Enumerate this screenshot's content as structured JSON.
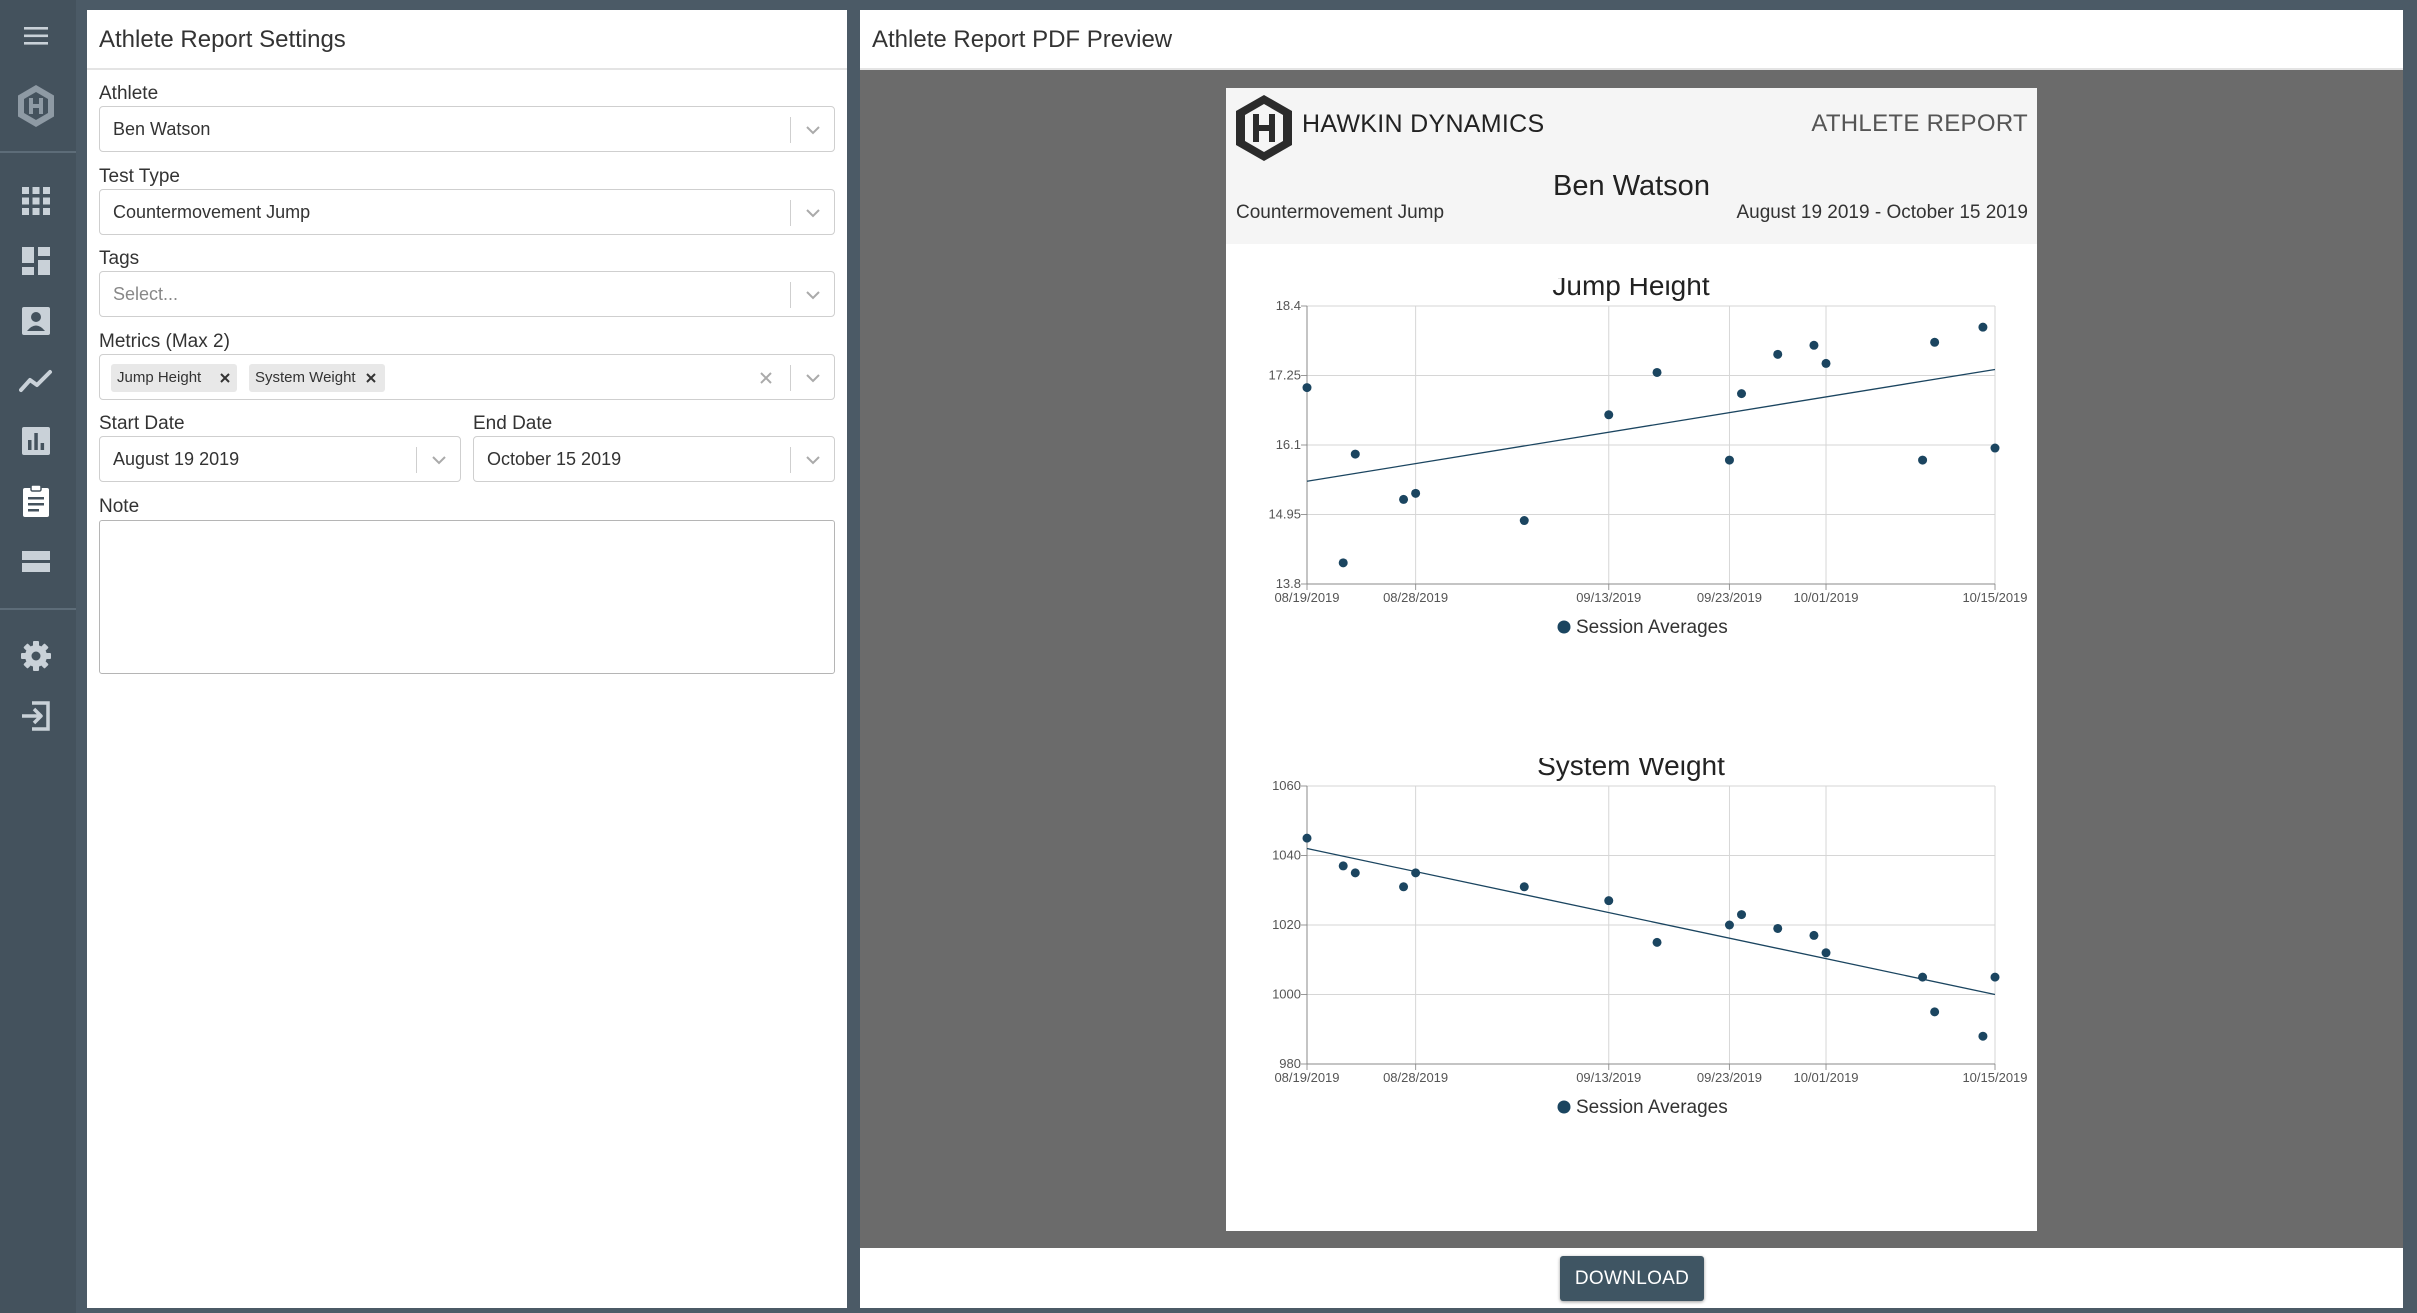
{
  "sidebar": {
    "icons": [
      "menu-icon",
      "hawkin-logo-icon",
      "apps-grid-icon",
      "dashboard-icon",
      "athlete-profile-icon",
      "trends-line-icon",
      "bar-chart-icon",
      "report-clipboard-icon",
      "list-view-icon",
      "settings-gear-icon",
      "logout-icon"
    ]
  },
  "settings": {
    "title": "Athlete Report Settings",
    "athlete": {
      "label": "Athlete",
      "value": "Ben Watson"
    },
    "test_type": {
      "label": "Test Type",
      "value": "Countermovement Jump"
    },
    "tags": {
      "label": "Tags",
      "placeholder": "Select..."
    },
    "metrics": {
      "label": "Metrics (Max 2)",
      "selected": [
        "Jump Height",
        "System Weight"
      ]
    },
    "start_date": {
      "label": "Start Date",
      "value": "August 19 2019"
    },
    "end_date": {
      "label": "End Date",
      "value": "October 15 2019"
    },
    "note": {
      "label": "Note",
      "value": ""
    }
  },
  "preview": {
    "title": "Athlete Report PDF Preview",
    "report": {
      "brand": "HAWKIN DYNAMICS",
      "report_label": "ATHLETE REPORT",
      "athlete": "Ben Watson",
      "test_type": "Countermovement Jump",
      "date_range": "August 19 2019 - October 15 2019"
    },
    "download_label": "DOWNLOAD"
  },
  "colors": {
    "sidebar": "#44525d",
    "accent": "#1b4560",
    "button": "#3f5563",
    "preview_bg": "#6b6b6b"
  },
  "chart_data": [
    {
      "type": "scatter",
      "title": "Jump Height",
      "legend": "Session Averages",
      "legend_position": "bottom",
      "grid": true,
      "trendline": true,
      "x_ticks": [
        "08/19/2019",
        "08/28/2019",
        "09/13/2019",
        "09/23/2019",
        "10/01/2019",
        "10/15/2019"
      ],
      "xlim": [
        "2019-08-19",
        "2019-10-15"
      ],
      "y_ticks": [
        "18.4",
        "17.25",
        "16.1",
        "14.95",
        "13.8"
      ],
      "ylim": [
        13.8,
        18.4
      ],
      "x": [
        "2019-08-19",
        "2019-08-22",
        "2019-08-23",
        "2019-08-27",
        "2019-08-28",
        "2019-09-06",
        "2019-09-13",
        "2019-09-17",
        "2019-09-23",
        "2019-09-24",
        "2019-09-27",
        "2019-09-30",
        "2019-10-01",
        "2019-10-09",
        "2019-10-10",
        "2019-10-14",
        "2019-10-15"
      ],
      "y": [
        17.05,
        14.15,
        15.95,
        15.2,
        15.3,
        14.85,
        16.6,
        17.3,
        15.85,
        16.95,
        17.6,
        17.75,
        17.45,
        15.85,
        17.8,
        18.05,
        16.05
      ],
      "trend": {
        "start": 15.5,
        "end": 17.35
      }
    },
    {
      "type": "scatter",
      "title": "System Weight",
      "legend": "Session Averages",
      "legend_position": "bottom",
      "grid": true,
      "trendline": true,
      "x_ticks": [
        "08/19/2019",
        "08/28/2019",
        "09/13/2019",
        "09/23/2019",
        "10/01/2019",
        "10/15/2019"
      ],
      "xlim": [
        "2019-08-19",
        "2019-10-15"
      ],
      "y_ticks": [
        "1060",
        "1040",
        "1020",
        "1000",
        "980"
      ],
      "ylim": [
        980,
        1060
      ],
      "x": [
        "2019-08-19",
        "2019-08-22",
        "2019-08-23",
        "2019-08-27",
        "2019-08-28",
        "2019-09-06",
        "2019-09-13",
        "2019-09-17",
        "2019-09-23",
        "2019-09-24",
        "2019-09-27",
        "2019-09-30",
        "2019-10-01",
        "2019-10-09",
        "2019-10-10",
        "2019-10-14",
        "2019-10-15"
      ],
      "y": [
        1045,
        1037,
        1035,
        1031,
        1035,
        1031,
        1027,
        1015,
        1020,
        1023,
        1019,
        1017,
        1012,
        1005,
        995,
        988,
        1005
      ],
      "trend": {
        "start": 1042,
        "end": 1000
      }
    }
  ]
}
